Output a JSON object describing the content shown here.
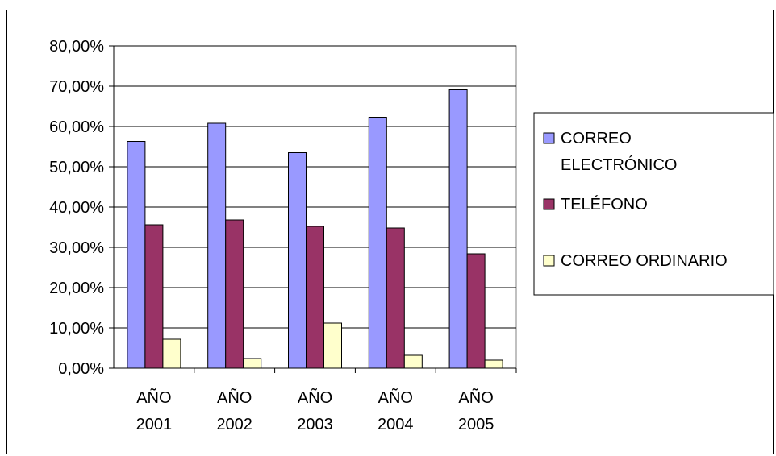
{
  "chart_data": {
    "type": "bar",
    "title": "",
    "xlabel": "",
    "ylabel": "",
    "categories": [
      [
        "AÑO",
        "2001"
      ],
      [
        "AÑO",
        "2002"
      ],
      [
        "AÑO",
        "2003"
      ],
      [
        "AÑO",
        "2004"
      ],
      [
        "AÑO",
        "2005"
      ]
    ],
    "series": [
      {
        "name": [
          "CORREO",
          "ELECTRÓNICO"
        ],
        "color": "#9999ff",
        "values": [
          56.3,
          60.8,
          53.5,
          62.3,
          69.1
        ]
      },
      {
        "name": [
          "TELÉFONO"
        ],
        "color": "#993366",
        "values": [
          35.6,
          36.8,
          35.2,
          34.8,
          28.4
        ]
      },
      {
        "name": [
          "CORREO ORDINARIO"
        ],
        "color": "#ffffcc",
        "values": [
          7.2,
          2.4,
          11.2,
          3.2,
          2.0
        ]
      }
    ],
    "ylim": [
      0,
      80
    ],
    "yticks": [
      "0,00%",
      "10,00%",
      "20,00%",
      "30,00%",
      "40,00%",
      "50,00%",
      "60,00%",
      "70,00%",
      "80,00%"
    ],
    "grid": true,
    "legend": "right"
  }
}
